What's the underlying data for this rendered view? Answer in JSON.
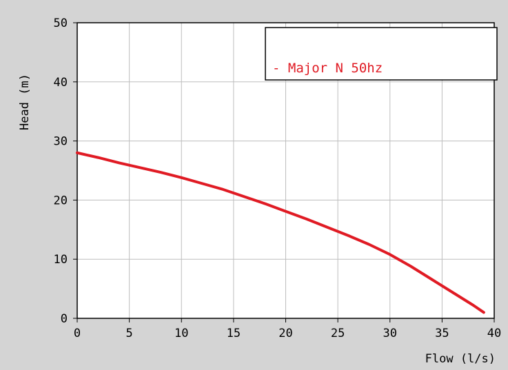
{
  "chart_data": {
    "type": "line",
    "title": "",
    "xlabel": "Flow (l/s)",
    "ylabel": "Head (m)",
    "xlim": [
      0,
      40
    ],
    "ylim": [
      0,
      50
    ],
    "x_ticks": [
      0,
      5,
      10,
      15,
      20,
      25,
      30,
      35,
      40
    ],
    "y_ticks": [
      0,
      10,
      20,
      30,
      40,
      50
    ],
    "grid": true,
    "legend_position": "top-right",
    "series": [
      {
        "name": "Major N 50hz",
        "color": "#e01b24",
        "x": [
          0,
          2,
          4,
          6,
          8,
          10,
          12,
          14,
          16,
          18,
          20,
          22,
          24,
          26,
          28,
          30,
          32,
          34,
          36,
          38,
          39
        ],
        "y": [
          28,
          27.2,
          26.3,
          25.5,
          24.7,
          23.8,
          22.8,
          21.8,
          20.6,
          19.4,
          18.1,
          16.8,
          15.4,
          14.0,
          12.5,
          10.8,
          8.8,
          6.6,
          4.4,
          2.2,
          1.0
        ]
      }
    ]
  }
}
